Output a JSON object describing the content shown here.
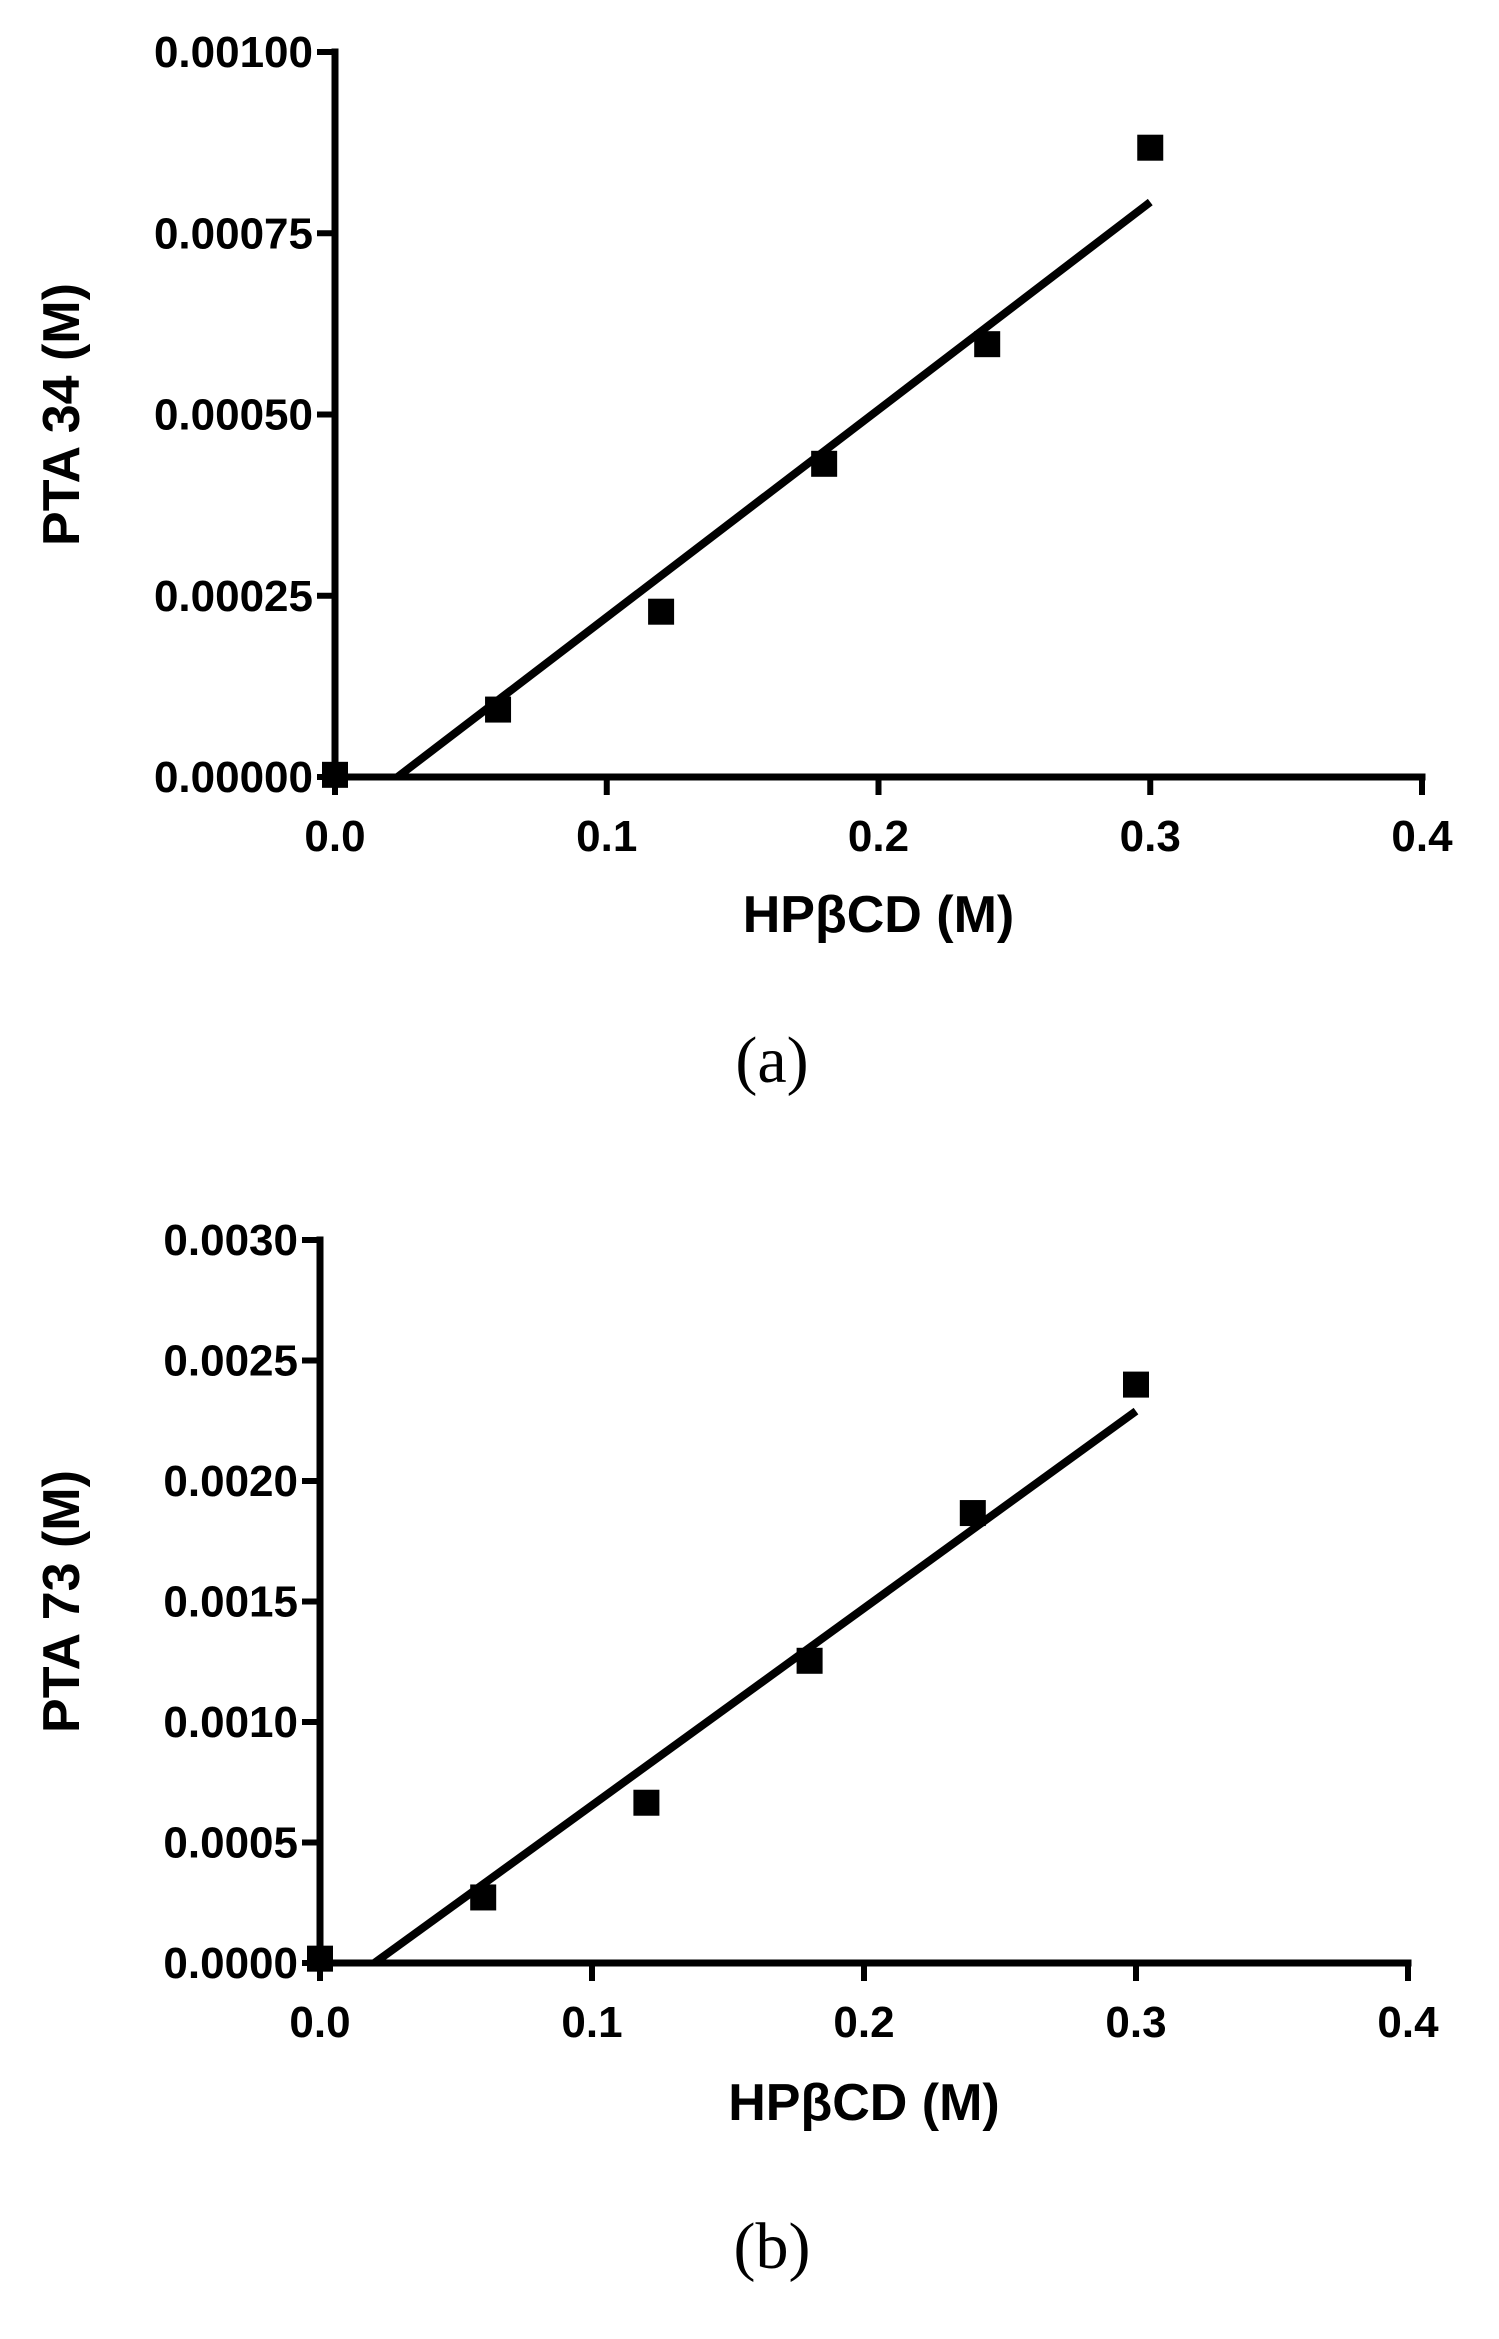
{
  "chart_data": [
    {
      "type": "scatter",
      "panel_label": "(a)",
      "xlabel": "HPβCD (M)",
      "ylabel": "PTA 34 (M)",
      "xlim": [
        0.0,
        0.4
      ],
      "ylim": [
        0.0,
        0.001
      ],
      "x_ticks": [
        "0.0",
        "0.1",
        "0.2",
        "0.3",
        "0.4"
      ],
      "y_ticks": [
        "0.00000",
        "0.00025",
        "0.00050",
        "0.00075",
        "0.00100"
      ],
      "grid": false,
      "legend": "none",
      "points": {
        "x": [
          0.0,
          0.06,
          0.12,
          0.18,
          0.24,
          0.3
        ],
        "y": [
          3e-06,
          9.3e-05,
          0.000228,
          0.000432,
          0.000597,
          0.000868
        ]
      },
      "fit_line": {
        "x": [
          0.023,
          0.3
        ],
        "y": [
          0.0,
          0.000793
        ]
      }
    },
    {
      "type": "scatter",
      "panel_label": "(b)",
      "xlabel": "HPβCD (M)",
      "ylabel": "PTA 73 (M)",
      "xlim": [
        0.0,
        0.4
      ],
      "ylim": [
        0.0,
        0.003
      ],
      "x_ticks": [
        "0.0",
        "0.1",
        "0.2",
        "0.3",
        "0.4"
      ],
      "y_ticks": [
        "0.0000",
        "0.0005",
        "0.0010",
        "0.0015",
        "0.0020",
        "0.0025",
        "0.0030"
      ],
      "grid": false,
      "legend": "none",
      "points": {
        "x": [
          0.0,
          0.06,
          0.12,
          0.18,
          0.24,
          0.3
        ],
        "y": [
          1.8e-05,
          0.000272,
          0.000665,
          0.001254,
          0.001867,
          0.0024
        ]
      },
      "fit_line": {
        "x": [
          0.02,
          0.3
        ],
        "y": [
          0.0,
          0.00229
        ]
      }
    }
  ]
}
